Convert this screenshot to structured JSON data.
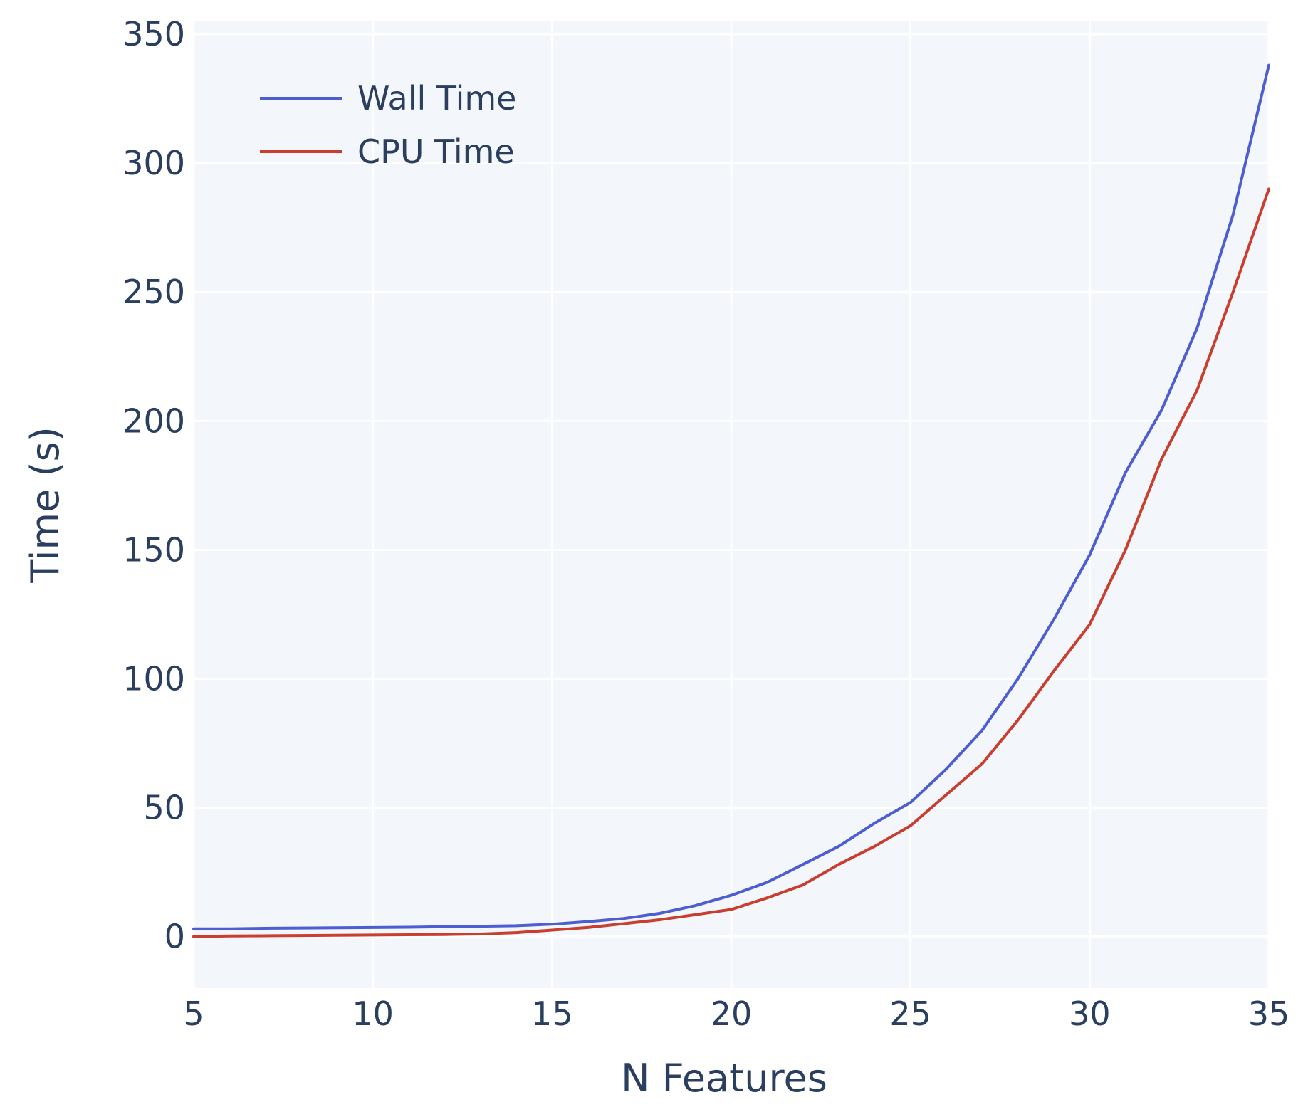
{
  "chart_data": {
    "type": "line",
    "title": "",
    "xlabel": "N Features",
    "ylabel": "Time (s)",
    "xlim": [
      5,
      35
    ],
    "ylim": [
      -20,
      355
    ],
    "x_ticks": [
      5,
      10,
      15,
      20,
      25,
      30,
      35
    ],
    "y_ticks": [
      0,
      50,
      100,
      150,
      200,
      250,
      300,
      350
    ],
    "x_tick_labels": [
      "5",
      "10",
      "15",
      "20",
      "25",
      "30",
      "35"
    ],
    "y_tick_labels": [
      "0",
      "50",
      "100",
      "150",
      "200",
      "250",
      "300",
      "350"
    ],
    "grid": true,
    "legend_position": "top-left",
    "background_color": "#f3f6fa",
    "x": [
      5,
      6,
      7,
      8,
      9,
      10,
      11,
      12,
      13,
      14,
      15,
      16,
      17,
      18,
      19,
      20,
      21,
      22,
      23,
      24,
      25,
      26,
      27,
      28,
      29,
      30,
      31,
      32,
      33,
      34,
      35
    ],
    "series": [
      {
        "name": "Wall Time",
        "color": "#4c5ed1",
        "values": [
          3,
          3,
          3.2,
          3.3,
          3.4,
          3.5,
          3.6,
          3.8,
          4,
          4.2,
          4.8,
          5.8,
          7,
          9,
          12,
          16,
          21,
          28,
          35,
          44,
          52,
          65,
          80,
          100,
          123,
          148,
          180,
          204,
          236,
          280,
          338
        ]
      },
      {
        "name": "CPU Time",
        "color": "#c93e2e",
        "values": [
          0,
          0.2,
          0.3,
          0.4,
          0.5,
          0.6,
          0.7,
          0.8,
          1,
          1.5,
          2.5,
          3.5,
          5,
          6.5,
          8.5,
          10.5,
          15,
          20,
          28,
          35,
          43,
          55,
          67,
          84,
          103,
          121,
          150,
          185,
          212,
          250,
          290
        ]
      }
    ]
  }
}
